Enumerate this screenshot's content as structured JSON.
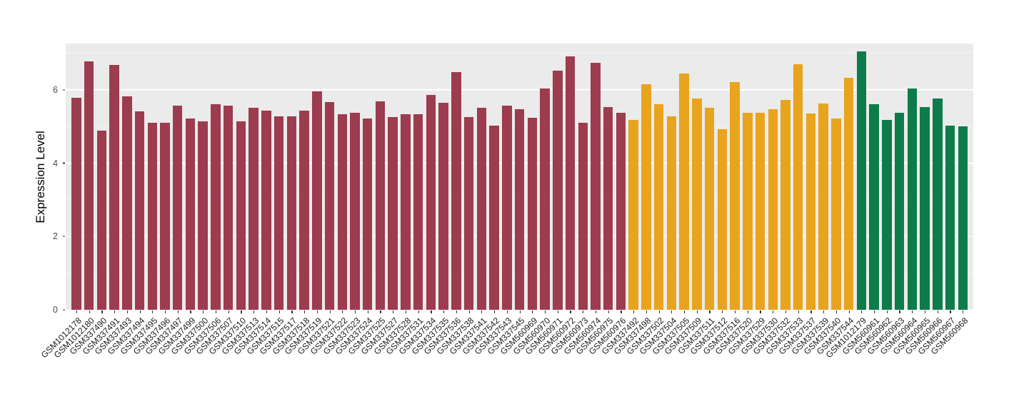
{
  "chart_data": {
    "type": "bar",
    "title": "",
    "xlabel": "",
    "ylabel": "Expression Level",
    "ylim": [
      0,
      7.26
    ],
    "yticks": [
      0,
      2,
      4,
      6
    ],
    "yticks_minor": [
      1,
      3,
      5,
      7
    ],
    "panel_bg": "#EBEBEB",
    "grid_major_color": "#FFFFFF",
    "legend": "none",
    "groups": [
      {
        "name": "group-1-maroon",
        "color": "#9C3C4E",
        "labels": [
          "GSM1012178",
          "GSM1012180",
          "GSM337490",
          "GSM337491",
          "GSM337493",
          "GSM337494",
          "GSM337495",
          "GSM337496",
          "GSM337497",
          "GSM337499",
          "GSM337500",
          "GSM337506",
          "GSM337507",
          "GSM337510",
          "GSM337513",
          "GSM337514",
          "GSM337515",
          "GSM337517",
          "GSM337518",
          "GSM337519",
          "GSM337521",
          "GSM337522",
          "GSM337523",
          "GSM337524",
          "GSM337525",
          "GSM337527",
          "GSM337528",
          "GSM337531",
          "GSM337534",
          "GSM337535",
          "GSM337536",
          "GSM337538",
          "GSM337541",
          "GSM337542",
          "GSM337543",
          "GSM337545",
          "GSM560969",
          "GSM560970",
          "GSM560971",
          "GSM560972",
          "GSM560973",
          "GSM560974",
          "GSM560975",
          "GSM560976"
        ],
        "values": [
          5.78,
          6.77,
          4.88,
          6.67,
          5.82,
          5.41,
          5.1,
          5.1,
          5.56,
          5.21,
          5.14,
          5.6,
          5.56,
          5.14,
          5.51,
          5.43,
          5.27,
          5.27,
          5.43,
          5.95,
          5.66,
          5.33,
          5.37,
          5.21,
          5.68,
          5.25,
          5.33,
          5.33,
          5.86,
          5.64,
          6.48,
          5.25,
          5.51,
          5.02,
          5.56,
          5.47,
          5.23,
          6.03,
          6.52,
          6.91,
          5.1,
          6.73,
          5.53,
          5.37
        ]
      },
      {
        "name": "group-2-orange",
        "color": "#E8A41D",
        "labels": [
          "GSM337492",
          "GSM337498",
          "GSM337502",
          "GSM337504",
          "GSM337505",
          "GSM337509",
          "GSM337511",
          "GSM337512",
          "GSM337516",
          "GSM337520",
          "GSM337529",
          "GSM337530",
          "GSM337532",
          "GSM337533",
          "GSM337537",
          "GSM337539",
          "GSM337540",
          "GSM337544"
        ],
        "values": [
          5.17,
          6.15,
          5.6,
          5.27,
          6.44,
          5.76,
          5.51,
          4.92,
          6.21,
          5.37,
          5.37,
          5.47,
          5.72,
          6.69,
          5.35,
          5.62,
          5.21,
          6.32
        ]
      },
      {
        "name": "group-3-green",
        "color": "#0E7B4B",
        "labels": [
          "GSM1012179",
          "GSM560961",
          "GSM560962",
          "GSM560963",
          "GSM560964",
          "GSM560965",
          "GSM560966",
          "GSM560967",
          "GSM560968"
        ],
        "values": [
          7.04,
          5.6,
          5.17,
          5.37,
          6.03,
          5.53,
          5.76,
          5.02,
          5.0
        ]
      }
    ]
  }
}
